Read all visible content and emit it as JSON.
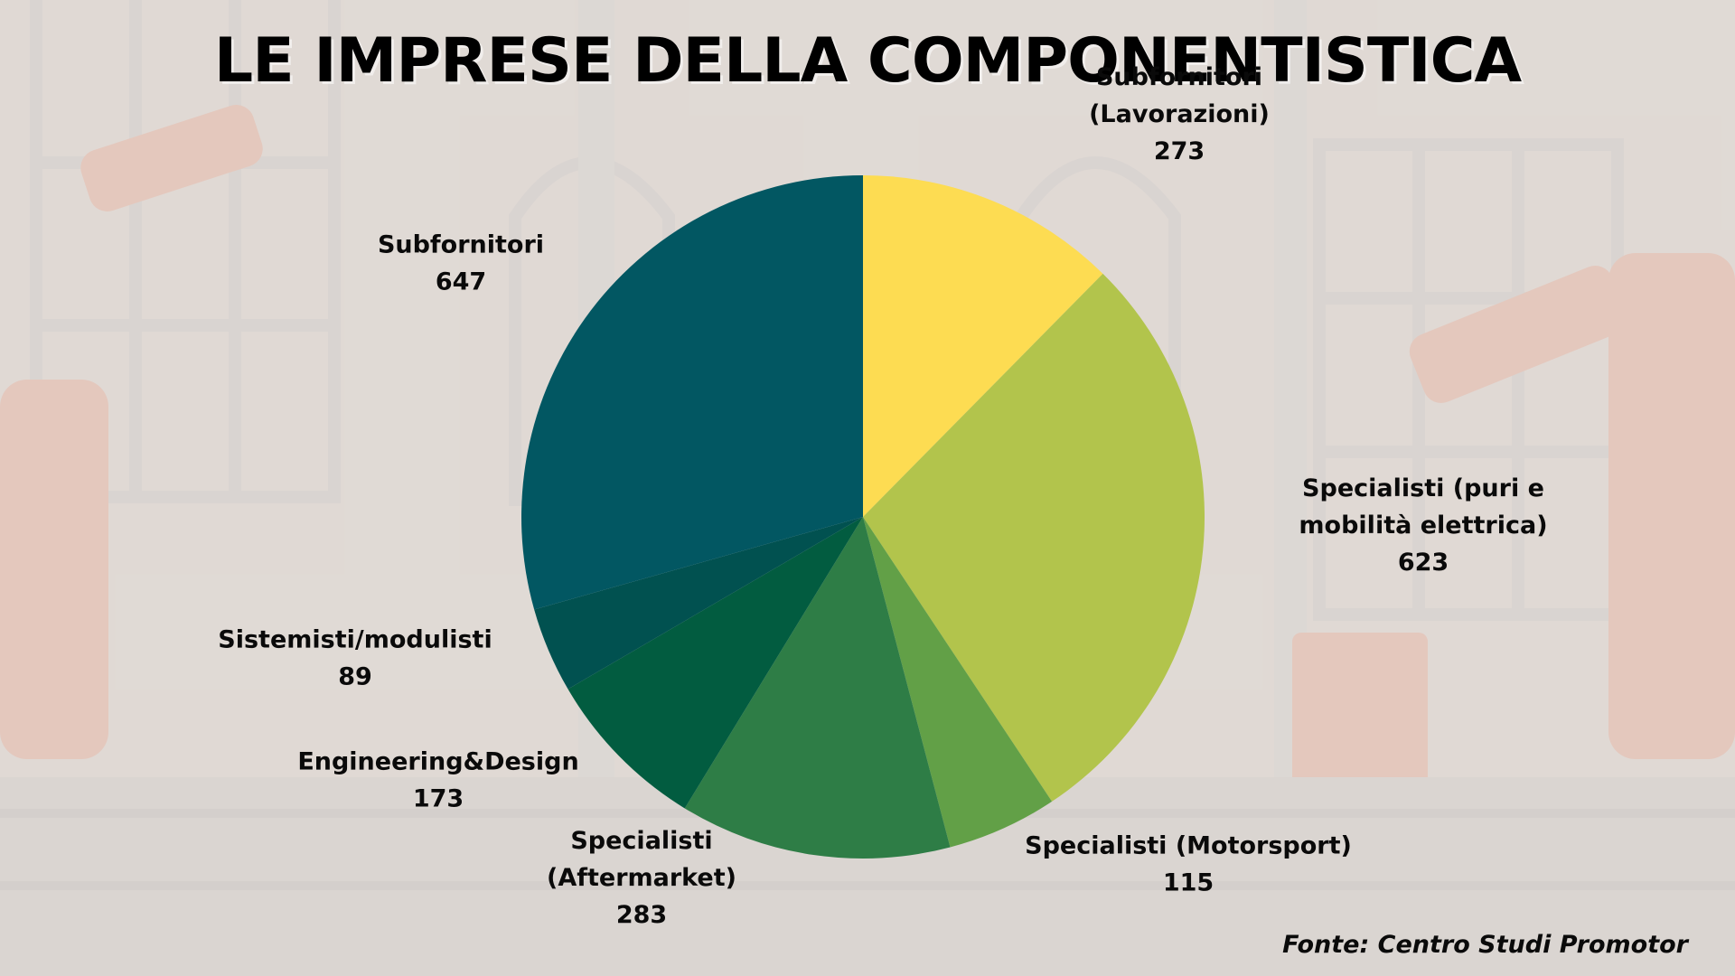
{
  "chart_data": {
    "type": "pie",
    "title": "LE IMPRESE DELLA COMPONENTISTICA",
    "source": "Fonte: Centro Studi Promotor",
    "slices": [
      {
        "label_lines": [
          "Subfornitori",
          "(Lavorazioni)"
        ],
        "value": 273,
        "color": "#fddc52"
      },
      {
        "label_lines": [
          "Specialisti (puri e",
          "mobilità elettrica)"
        ],
        "value": 623,
        "color": "#b2c44c"
      },
      {
        "label_lines": [
          "Specialisti (Motorsport)"
        ],
        "value": 115,
        "color": "#62a047"
      },
      {
        "label_lines": [
          "Specialisti",
          "(Aftermarket)"
        ],
        "value": 283,
        "color": "#2e7d46"
      },
      {
        "label_lines": [
          "Engineering&Design"
        ],
        "value": 173,
        "color": "#025c40"
      },
      {
        "label_lines": [
          "Sistemisti/modulisti"
        ],
        "value": 89,
        "color": "#015150"
      },
      {
        "label_lines": [
          "Subfornitori"
        ],
        "value": 647,
        "color": "#025762"
      }
    ],
    "start": "12 o'clock",
    "direction": "clockwise",
    "legend": "none"
  },
  "background": {
    "style": "faded photo of a robotic car factory",
    "color": "#d7d2ce"
  }
}
